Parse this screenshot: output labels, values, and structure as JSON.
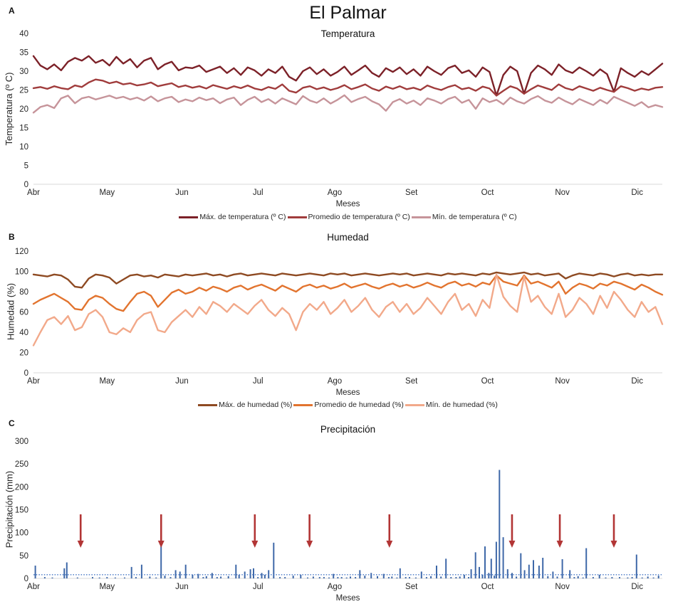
{
  "title": "El Palmar",
  "chart_data": [
    {
      "type": "line",
      "panel_label": "A",
      "title": "Temperatura",
      "xlabel": "Meses",
      "ylabel": "Temperatura (º C)",
      "ylim": [
        0,
        40
      ],
      "yticks": [
        0,
        5,
        10,
        15,
        20,
        25,
        30,
        35,
        40
      ],
      "categories": [
        "Abr",
        "May",
        "Jun",
        "Jul",
        "Ago",
        "Set",
        "Oct",
        "Nov",
        "Dic"
      ],
      "month_fracs": [
        0,
        0.117,
        0.236,
        0.357,
        0.479,
        0.601,
        0.722,
        0.841,
        0.96
      ],
      "grid": false,
      "legend_position": "bottom",
      "series": [
        {
          "name": "Máx. de temperatura (º C)",
          "color": "#7C2128",
          "values": [
            34,
            31.5,
            30.5,
            31.8,
            30.2,
            32.5,
            33.5,
            32.8,
            34,
            32.2,
            33,
            31.5,
            33.8,
            32,
            33.2,
            31,
            32.8,
            33.5,
            30.5,
            31.8,
            32.5,
            30.2,
            31,
            30.8,
            31.5,
            29.8,
            30.5,
            31.2,
            29.5,
            30.8,
            29,
            31,
            30.2,
            28.8,
            30.5,
            29.5,
            31.2,
            28.5,
            27.5,
            30,
            31,
            29.2,
            30.5,
            28.8,
            29.8,
            31.2,
            29,
            30.2,
            31.5,
            29.5,
            28.5,
            30.8,
            29.8,
            31,
            29.2,
            30.5,
            28.8,
            31.2,
            30,
            29,
            30.8,
            31.5,
            29.5,
            30.2,
            28.5,
            31,
            29.8,
            23.5,
            29,
            31.2,
            30,
            24,
            29.5,
            31.5,
            30.5,
            29,
            31.8,
            30.2,
            29.5,
            31,
            30,
            28.8,
            30.5,
            29.2,
            24.5,
            30.8,
            29.5,
            28.5,
            30,
            29,
            30.5,
            32
          ]
        },
        {
          "name": "Promedio de temperatura (º C)",
          "color": "#A03C3C",
          "values": [
            25.5,
            25.8,
            25.3,
            26,
            25.5,
            25.2,
            26.2,
            25.8,
            27,
            27.8,
            27.5,
            26.8,
            27.2,
            26.5,
            26.8,
            26.2,
            26.5,
            27,
            26,
            26.4,
            26.8,
            25.8,
            26.2,
            25.6,
            26,
            25.4,
            26.3,
            25.8,
            25.3,
            26,
            25.5,
            26.2,
            25.4,
            25,
            25.8,
            25.3,
            26.5,
            24.8,
            24.3,
            25.6,
            26,
            25.2,
            25.7,
            25,
            25.5,
            26.3,
            25.2,
            25.8,
            26.5,
            25.4,
            24.8,
            25.9,
            25.3,
            26,
            25.2,
            25.6,
            25,
            26.2,
            25.5,
            25,
            25.8,
            26.3,
            25.2,
            25.6,
            24.8,
            25.9,
            25.4,
            23.5,
            24.8,
            26,
            25.4,
            24,
            25.2,
            26.2,
            25.6,
            25,
            26.5,
            25.5,
            25,
            26,
            25.4,
            24.8,
            25.6,
            25,
            24.5,
            26,
            25.5,
            24.8,
            25.4,
            25,
            25.6,
            25.8
          ]
        },
        {
          "name": "Mín. de temperatura (º C)",
          "color": "#C6949A",
          "values": [
            19,
            20.5,
            21,
            20.2,
            22.8,
            23.5,
            21.5,
            22.8,
            23.2,
            22.5,
            23,
            23.5,
            22.8,
            23.2,
            22.5,
            23,
            22.2,
            23.3,
            22,
            22.8,
            23.2,
            21.8,
            22.5,
            22,
            23,
            22.3,
            22.8,
            21.5,
            22.5,
            23,
            21,
            22.4,
            23.2,
            21.8,
            22.6,
            21.4,
            22.8,
            22,
            21.2,
            23.4,
            22.2,
            21.6,
            22.8,
            21.4,
            22.4,
            23.6,
            21.8,
            22.6,
            23.2,
            22,
            21.2,
            19.5,
            21.8,
            22.6,
            21.4,
            22.2,
            21,
            22.8,
            22.2,
            21.4,
            22.6,
            23.2,
            21.6,
            22.4,
            20,
            22.8,
            21.8,
            22.4,
            21.2,
            23,
            22,
            21.4,
            22.6,
            23.4,
            22.2,
            21.6,
            23,
            22,
            21.2,
            22.6,
            21.8,
            21,
            22.4,
            21.4,
            23.2,
            22.4,
            21.6,
            20.8,
            21.8,
            20.4,
            21,
            20.5
          ]
        }
      ]
    },
    {
      "type": "line",
      "panel_label": "B",
      "title": "Humedad",
      "xlabel": "Meses",
      "ylabel": "Humedad (%)",
      "ylim": [
        0,
        120
      ],
      "yticks": [
        0,
        20,
        40,
        60,
        80,
        100,
        120
      ],
      "categories": [
        "Abr",
        "May",
        "Jun",
        "Jul",
        "Ago",
        "Set",
        "Oct",
        "Nov",
        "Dic"
      ],
      "month_fracs": [
        0,
        0.117,
        0.236,
        0.357,
        0.479,
        0.601,
        0.722,
        0.841,
        0.96
      ],
      "grid": false,
      "legend_position": "bottom",
      "series": [
        {
          "name": "Máx. de humedad (%)",
          "color": "#8E4A22",
          "values": [
            97,
            96,
            95,
            97,
            96,
            92,
            85,
            84,
            93,
            97,
            96,
            94,
            88,
            92,
            96,
            97,
            95,
            96,
            94,
            97,
            96,
            95,
            97,
            96,
            97,
            98,
            96,
            97,
            95,
            97,
            98,
            96,
            97,
            98,
            97,
            96,
            98,
            97,
            96,
            97,
            98,
            97,
            96,
            98,
            97,
            98,
            96,
            97,
            98,
            97,
            96,
            97,
            98,
            97,
            98,
            96,
            97,
            98,
            97,
            96,
            98,
            97,
            98,
            97,
            96,
            98,
            97,
            99,
            98,
            97,
            98,
            99,
            97,
            98,
            96,
            97,
            98,
            93,
            96,
            98,
            97,
            96,
            98,
            97,
            95,
            97,
            98,
            96,
            97,
            96,
            97,
            97
          ]
        },
        {
          "name": "Promedio de humedad (%)",
          "color": "#E2742F",
          "values": [
            68,
            72,
            75,
            78,
            74,
            70,
            63,
            62,
            72,
            76,
            74,
            68,
            63,
            61,
            70,
            78,
            80,
            76,
            65,
            72,
            79,
            82,
            78,
            80,
            84,
            81,
            85,
            83,
            80,
            84,
            86,
            82,
            85,
            87,
            84,
            81,
            86,
            83,
            80,
            85,
            87,
            84,
            86,
            83,
            85,
            88,
            84,
            86,
            88,
            85,
            83,
            86,
            88,
            85,
            87,
            84,
            86,
            89,
            86,
            84,
            88,
            90,
            86,
            88,
            85,
            89,
            87,
            96,
            90,
            88,
            86,
            96,
            88,
            90,
            87,
            84,
            90,
            78,
            84,
            88,
            86,
            83,
            88,
            86,
            90,
            88,
            85,
            82,
            87,
            84,
            80,
            77
          ]
        },
        {
          "name": "Mín. de humedad (%)",
          "color": "#F2A98A",
          "values": [
            27,
            40,
            52,
            55,
            48,
            56,
            42,
            45,
            58,
            62,
            55,
            40,
            38,
            44,
            40,
            52,
            58,
            60,
            42,
            40,
            50,
            56,
            62,
            55,
            65,
            58,
            70,
            66,
            60,
            68,
            63,
            58,
            66,
            72,
            62,
            56,
            64,
            58,
            42,
            60,
            68,
            62,
            70,
            58,
            64,
            72,
            60,
            66,
            74,
            62,
            55,
            65,
            70,
            60,
            68,
            58,
            64,
            74,
            66,
            58,
            70,
            78,
            62,
            68,
            56,
            72,
            64,
            97,
            75,
            66,
            60,
            95,
            70,
            76,
            65,
            58,
            78,
            55,
            62,
            74,
            68,
            58,
            76,
            64,
            80,
            72,
            62,
            55,
            70,
            60,
            65,
            48
          ]
        }
      ]
    },
    {
      "type": "bar",
      "panel_label": "C",
      "title": "Precipitación",
      "xlabel": "Meses",
      "ylabel": "Precipitación (mm)",
      "ylim": [
        0,
        300
      ],
      "yticks": [
        0,
        50,
        100,
        150,
        200,
        250,
        300
      ],
      "categories": [
        "Abr",
        "May",
        "Jun",
        "Jul",
        "Ago",
        "Set",
        "Oct",
        "Nov",
        "Dic"
      ],
      "month_fracs": [
        0,
        0.117,
        0.236,
        0.357,
        0.479,
        0.601,
        0.722,
        0.841,
        0.96
      ],
      "grid": false,
      "bar_color": "#3E68A8",
      "bars": [
        [
          0.003,
          28
        ],
        [
          0.018,
          3
        ],
        [
          0.03,
          2
        ],
        [
          0.049,
          22
        ],
        [
          0.053,
          35
        ],
        [
          0.07,
          2
        ],
        [
          0.094,
          3
        ],
        [
          0.105,
          2
        ],
        [
          0.117,
          3
        ],
        [
          0.13,
          2
        ],
        [
          0.145,
          2
        ],
        [
          0.156,
          25
        ],
        [
          0.163,
          3
        ],
        [
          0.172,
          30
        ],
        [
          0.185,
          4
        ],
        [
          0.195,
          2
        ],
        [
          0.203,
          120
        ],
        [
          0.209,
          6
        ],
        [
          0.218,
          3
        ],
        [
          0.226,
          18
        ],
        [
          0.233,
          15
        ],
        [
          0.242,
          30
        ],
        [
          0.253,
          8
        ],
        [
          0.262,
          10
        ],
        [
          0.27,
          3
        ],
        [
          0.275,
          5
        ],
        [
          0.284,
          12
        ],
        [
          0.292,
          3
        ],
        [
          0.298,
          4
        ],
        [
          0.31,
          5
        ],
        [
          0.322,
          30
        ],
        [
          0.327,
          8
        ],
        [
          0.336,
          15
        ],
        [
          0.345,
          20
        ],
        [
          0.35,
          22
        ],
        [
          0.357,
          3
        ],
        [
          0.363,
          12
        ],
        [
          0.368,
          8
        ],
        [
          0.374,
          18
        ],
        [
          0.382,
          78
        ],
        [
          0.392,
          3
        ],
        [
          0.4,
          3
        ],
        [
          0.413,
          6
        ],
        [
          0.425,
          8
        ],
        [
          0.436,
          2
        ],
        [
          0.445,
          4
        ],
        [
          0.455,
          3
        ],
        [
          0.462,
          3
        ],
        [
          0.47,
          2
        ],
        [
          0.477,
          10
        ],
        [
          0.484,
          3
        ],
        [
          0.49,
          3
        ],
        [
          0.498,
          2
        ],
        [
          0.504,
          4
        ],
        [
          0.512,
          3
        ],
        [
          0.519,
          18
        ],
        [
          0.527,
          6
        ],
        [
          0.537,
          12
        ],
        [
          0.547,
          5
        ],
        [
          0.557,
          10
        ],
        [
          0.565,
          3
        ],
        [
          0.57,
          4
        ],
        [
          0.578,
          2
        ],
        [
          0.583,
          22
        ],
        [
          0.592,
          3
        ],
        [
          0.598,
          3
        ],
        [
          0.608,
          2
        ],
        [
          0.617,
          15
        ],
        [
          0.625,
          3
        ],
        [
          0.632,
          5
        ],
        [
          0.641,
          28
        ],
        [
          0.648,
          4
        ],
        [
          0.656,
          43
        ],
        [
          0.664,
          3
        ],
        [
          0.672,
          3
        ],
        [
          0.678,
          4
        ],
        [
          0.685,
          8
        ],
        [
          0.692,
          3
        ],
        [
          0.696,
          20
        ],
        [
          0.703,
          57
        ],
        [
          0.709,
          25
        ],
        [
          0.714,
          8
        ],
        [
          0.718,
          70
        ],
        [
          0.724,
          12
        ],
        [
          0.728,
          43
        ],
        [
          0.733,
          6
        ],
        [
          0.736,
          80
        ],
        [
          0.741,
          237
        ],
        [
          0.747,
          90
        ],
        [
          0.754,
          20
        ],
        [
          0.761,
          12
        ],
        [
          0.768,
          4
        ],
        [
          0.775,
          55
        ],
        [
          0.781,
          18
        ],
        [
          0.788,
          30
        ],
        [
          0.795,
          40
        ],
        [
          0.804,
          28
        ],
        [
          0.81,
          45
        ],
        [
          0.818,
          5
        ],
        [
          0.826,
          15
        ],
        [
          0.833,
          4
        ],
        [
          0.841,
          42
        ],
        [
          0.853,
          18
        ],
        [
          0.86,
          3
        ],
        [
          0.866,
          5
        ],
        [
          0.874,
          2
        ],
        [
          0.879,
          66
        ],
        [
          0.89,
          3
        ],
        [
          0.9,
          8
        ],
        [
          0.91,
          2
        ],
        [
          0.92,
          3
        ],
        [
          0.932,
          3
        ],
        [
          0.945,
          2
        ],
        [
          0.952,
          3
        ],
        [
          0.959,
          52
        ],
        [
          0.968,
          2
        ],
        [
          0.977,
          4
        ],
        [
          0.986,
          2
        ],
        [
          0.994,
          6
        ]
      ],
      "reference_line": {
        "value": 8,
        "style": "dotted",
        "color": "#4173C4"
      },
      "arrows": {
        "color": "#B23535",
        "tail_mm": 140,
        "head_mm": 67,
        "positions": [
          0.075,
          0.203,
          0.352,
          0.439,
          0.566,
          0.761,
          0.837,
          0.923
        ]
      }
    }
  ]
}
